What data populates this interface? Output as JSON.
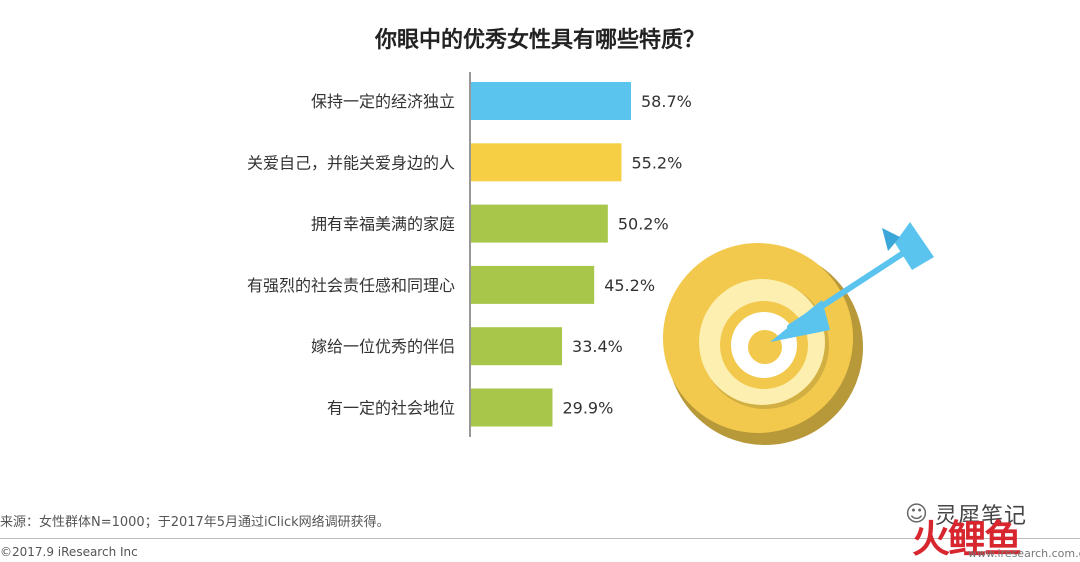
{
  "chart_data": {
    "type": "bar",
    "orientation": "horizontal",
    "title": "你眼中的优秀女性具有哪些特质？",
    "categories": [
      "保持一定的经济独立",
      "关爱自己，并能关爱身边的人",
      "拥有幸福美满的家庭",
      "有强烈的社会责任感和同理心",
      "嫁给一位优秀的伴侣",
      "有一定的社会地位"
    ],
    "values": [
      58.7,
      55.2,
      50.2,
      45.2,
      33.4,
      29.9
    ],
    "value_labels": [
      "58.7%",
      "55.2%",
      "50.2%",
      "45.2%",
      "33.4%",
      "29.9%"
    ],
    "bar_colors": [
      "#5bc4ee",
      "#f6cf45",
      "#a8c64a",
      "#a8c64a",
      "#a8c64a",
      "#a8c64a"
    ],
    "xlim": [
      0,
      100
    ],
    "grid": false,
    "legend": "none"
  },
  "footer": {
    "source": "来源：女性群体N=1000；于2017年5月通过iClick网络调研获得。",
    "copyright": "©2017.9 iResearch Inc"
  },
  "watermark": {
    "account": "灵犀笔记",
    "brand": "火鲤鱼",
    "url": "www.iresearch.com.cn",
    "icon": "wechat-icon"
  },
  "decoration": {
    "icon": "target-arrow-icon",
    "colors": {
      "outer": "#f2c94c",
      "shadow": "#b8993a",
      "light": "#fcefb0",
      "arrow": "#5bc4ee"
    }
  }
}
